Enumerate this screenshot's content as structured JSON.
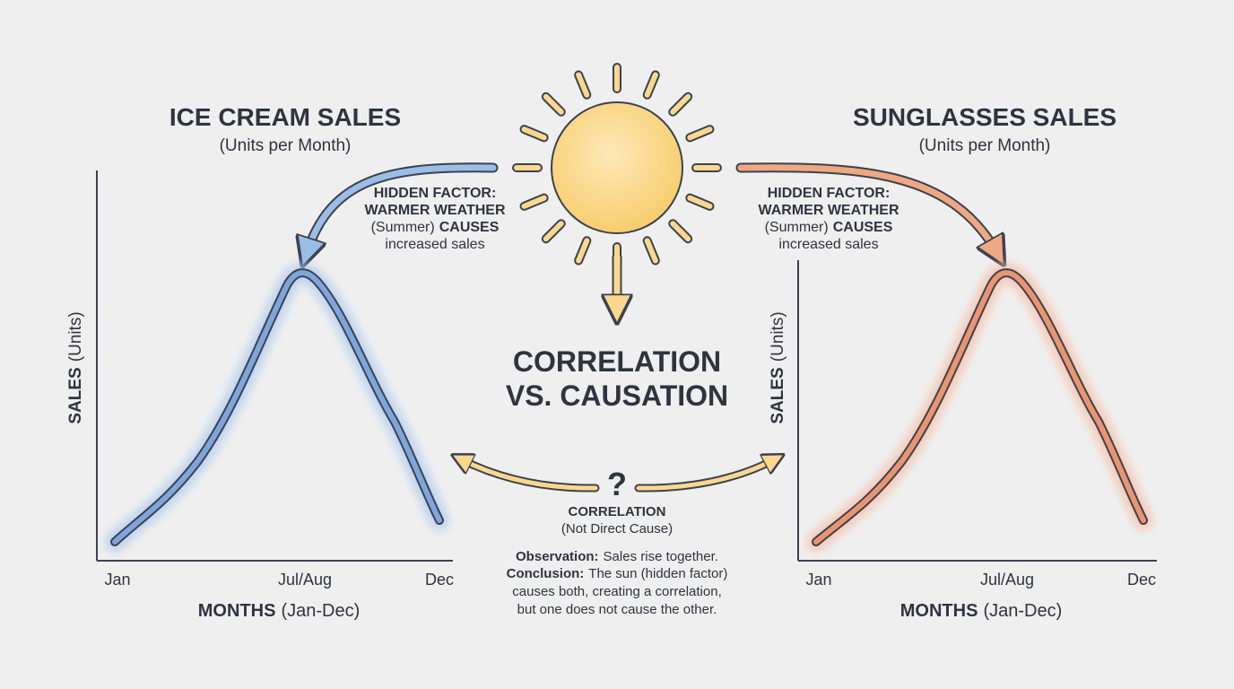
{
  "center": {
    "title_lines": [
      "CORRELATION",
      "VS. CAUSATION"
    ],
    "question": "?",
    "correlation_label": "CORRELATION",
    "correlation_sub": "(Not Direct Cause)",
    "observation": {
      "label": "Observation:",
      "text": "Sales rise together."
    },
    "conclusion": {
      "label": "Conclusion:",
      "lines": [
        "The sun (hidden factor)",
        "causes both, creating a correlation,",
        "but one does not cause the other."
      ]
    }
  },
  "panels": [
    {
      "title": "ICE CREAM SALES",
      "subtitle": "(Units per Month)",
      "hidden_factor": {
        "line1": "HIDDEN FACTOR:",
        "line2": "WARMER WEATHER",
        "line3_normal": "(Summer)",
        "line3_bold": "CAUSES",
        "line4": "increased sales"
      },
      "y_axis": {
        "bold": "SALES",
        "rest": "(Units)"
      },
      "x_ticks": [
        "Jan",
        "Jul/Aug",
        "Dec"
      ],
      "x_axis": {
        "bold": "MONTHS",
        "rest": "(Jan-Dec)"
      }
    },
    {
      "title": "SUNGLASSES SALES",
      "subtitle": "(Units per Month)",
      "hidden_factor": {
        "line1": "HIDDEN FACTOR:",
        "line2": "WARMER WEATHER",
        "line3_normal": "(Summer)",
        "line3_bold": "CAUSES",
        "line4": "increased sales"
      },
      "y_axis": {
        "bold": "SALES",
        "rest": "(Units)"
      },
      "x_ticks": [
        "Jan",
        "Jul/Aug",
        "Dec"
      ],
      "x_axis": {
        "bold": "MONTHS",
        "rest": "(Jan-Dec)"
      }
    }
  ]
}
